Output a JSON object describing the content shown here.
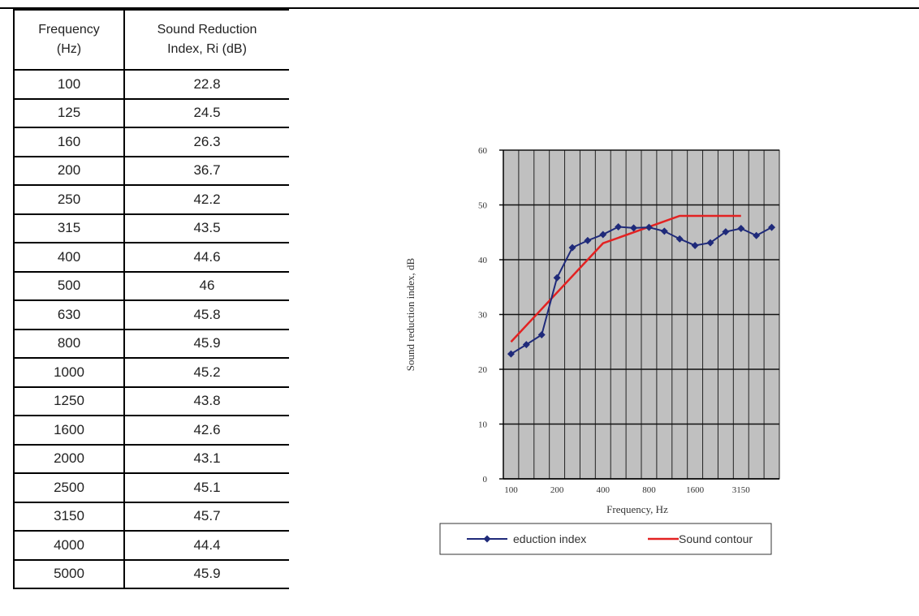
{
  "table": {
    "headers": [
      "Frequency\n(Hz)",
      "Sound Reduction\nIndex,  Ri (dB)"
    ],
    "rows": [
      [
        "100",
        "22.8"
      ],
      [
        "125",
        "24.5"
      ],
      [
        "160",
        "26.3"
      ],
      [
        "200",
        "36.7"
      ],
      [
        "250",
        "42.2"
      ],
      [
        "315",
        "43.5"
      ],
      [
        "400",
        "44.6"
      ],
      [
        "500",
        "46"
      ],
      [
        "630",
        "45.8"
      ],
      [
        "800",
        "45.9"
      ],
      [
        "1000",
        "45.2"
      ],
      [
        "1250",
        "43.8"
      ],
      [
        "1600",
        "42.6"
      ],
      [
        "2000",
        "43.1"
      ],
      [
        "2500",
        "45.1"
      ],
      [
        "3150",
        "45.7"
      ],
      [
        "4000",
        "44.4"
      ],
      [
        "5000",
        "45.9"
      ]
    ]
  },
  "chart_data": {
    "type": "line",
    "title": "",
    "xlabel": "Frequency, Hz",
    "ylabel": "Sound reduction index, dB",
    "ylim": [
      0,
      60
    ],
    "yticks": [
      0,
      10,
      20,
      30,
      40,
      50,
      60
    ],
    "x_tick_labels": [
      "100",
      "200",
      "400",
      "800",
      "1600",
      "3150"
    ],
    "categories": [
      "100",
      "125",
      "160",
      "200",
      "250",
      "315",
      "400",
      "500",
      "630",
      "800",
      "1000",
      "1250",
      "1600",
      "2000",
      "2500",
      "3150",
      "4000",
      "5000"
    ],
    "grid": true,
    "plot_background": "#c0c0c0",
    "legend_position": "bottom",
    "series": [
      {
        "name": "eduction index",
        "color": "#1f2a7a",
        "marker": "diamond",
        "values": [
          22.8,
          24.5,
          26.3,
          36.7,
          42.2,
          43.5,
          44.6,
          46,
          45.8,
          45.9,
          45.2,
          43.8,
          42.6,
          43.1,
          45.1,
          45.7,
          44.4,
          45.9
        ]
      },
      {
        "name": "Sound contour",
        "color": "#e32222",
        "marker": "none",
        "points": [
          [
            "100",
            25
          ],
          [
            "400",
            43
          ],
          [
            "1250",
            48
          ],
          [
            "3150",
            48
          ]
        ]
      }
    ]
  }
}
